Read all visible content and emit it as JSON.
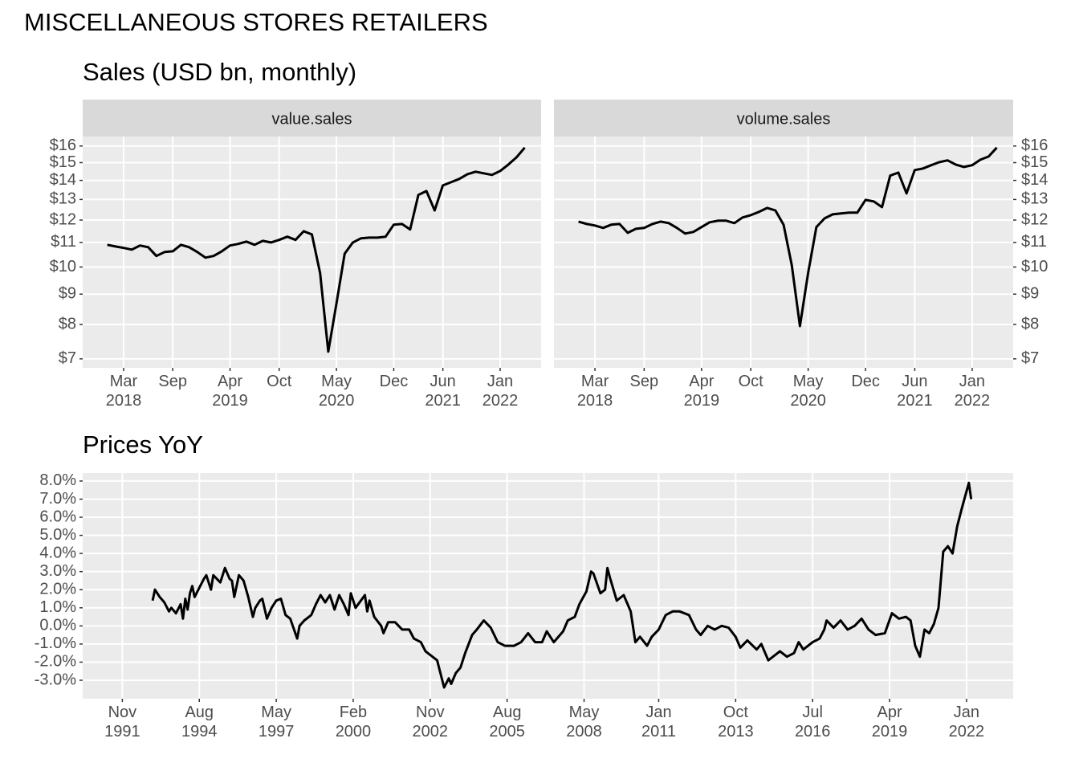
{
  "title": "MISCELLANEOUS STORES RETAILERS",
  "chart_data": [
    {
      "type": "line",
      "title": "Sales (USD bn, monthly)",
      "facet": "value.sales",
      "color": "#000000",
      "log_y": true,
      "y_axis_position": "left",
      "grid": true,
      "x": [
        "2018-01",
        "2018-02",
        "2018-03",
        "2018-04",
        "2018-05",
        "2018-06",
        "2018-07",
        "2018-08",
        "2018-09",
        "2018-10",
        "2018-11",
        "2018-12",
        "2019-01",
        "2019-02",
        "2019-03",
        "2019-04",
        "2019-05",
        "2019-06",
        "2019-07",
        "2019-08",
        "2019-09",
        "2019-10",
        "2019-11",
        "2019-12",
        "2020-01",
        "2020-02",
        "2020-03",
        "2020-04",
        "2020-05",
        "2020-06",
        "2020-07",
        "2020-08",
        "2020-09",
        "2020-10",
        "2020-11",
        "2020-12",
        "2021-01",
        "2021-02",
        "2021-03",
        "2021-04",
        "2021-05",
        "2021-06",
        "2021-07",
        "2021-08",
        "2021-09",
        "2021-10",
        "2021-11",
        "2021-12",
        "2022-01",
        "2022-02",
        "2022-03",
        "2022-04"
      ],
      "values": [
        10.9,
        10.83,
        10.77,
        10.7,
        10.87,
        10.8,
        10.44,
        10.6,
        10.63,
        10.9,
        10.8,
        10.6,
        10.37,
        10.44,
        10.63,
        10.87,
        10.94,
        11.04,
        10.9,
        11.07,
        11.0,
        11.11,
        11.25,
        11.11,
        11.49,
        11.35,
        9.77,
        7.2,
        8.68,
        10.53,
        11.0,
        11.18,
        11.21,
        11.21,
        11.25,
        11.79,
        11.82,
        11.57,
        13.23,
        13.43,
        12.46,
        13.73,
        13.9,
        14.08,
        14.34,
        14.48,
        14.39,
        14.3,
        14.52,
        14.89,
        15.31,
        15.9
      ],
      "xlim": [
        "2017-10",
        "2022-06"
      ],
      "xticks": [
        {
          "value": "2018-03",
          "label": "Mar\n2018"
        },
        {
          "value": "2018-09",
          "label": "Sep"
        },
        {
          "value": "2019-04",
          "label": "Apr\n2019"
        },
        {
          "value": "2019-10",
          "label": "Oct"
        },
        {
          "value": "2020-05",
          "label": "May\n2020"
        },
        {
          "value": "2020-12",
          "label": "Dec"
        },
        {
          "value": "2021-06",
          "label": "Jun\n2021"
        },
        {
          "value": "2022-01",
          "label": "Jan\n2022"
        }
      ],
      "ylim": [
        6.76,
        16.6
      ],
      "yticks": [
        {
          "value": 7,
          "label": "$7"
        },
        {
          "value": 8,
          "label": "$8"
        },
        {
          "value": 9,
          "label": "$9"
        },
        {
          "value": 10,
          "label": "$10"
        },
        {
          "value": 11,
          "label": "$11"
        },
        {
          "value": 12,
          "label": "$12"
        },
        {
          "value": 13,
          "label": "$13"
        },
        {
          "value": 14,
          "label": "$14"
        },
        {
          "value": 15,
          "label": "$15"
        },
        {
          "value": 16,
          "label": "$16"
        }
      ]
    },
    {
      "type": "line",
      "facet": "volume.sales",
      "color": "#000000",
      "log_y": true,
      "y_axis_position": "right",
      "grid": true,
      "x": [
        "2018-01",
        "2018-02",
        "2018-03",
        "2018-04",
        "2018-05",
        "2018-06",
        "2018-07",
        "2018-08",
        "2018-09",
        "2018-10",
        "2018-11",
        "2018-12",
        "2019-01",
        "2019-02",
        "2019-03",
        "2019-04",
        "2019-05",
        "2019-06",
        "2019-07",
        "2019-08",
        "2019-09",
        "2019-10",
        "2019-11",
        "2019-12",
        "2020-01",
        "2020-02",
        "2020-03",
        "2020-04",
        "2020-05",
        "2020-06",
        "2020-07",
        "2020-08",
        "2020-09",
        "2020-10",
        "2020-11",
        "2020-12",
        "2021-01",
        "2021-02",
        "2021-03",
        "2021-04",
        "2021-05",
        "2021-06",
        "2021-07",
        "2021-08",
        "2021-09",
        "2021-10",
        "2021-11",
        "2021-12",
        "2022-01",
        "2022-02",
        "2022-03",
        "2022-04"
      ],
      "values": [
        11.93,
        11.82,
        11.75,
        11.64,
        11.79,
        11.82,
        11.42,
        11.6,
        11.64,
        11.82,
        11.93,
        11.86,
        11.64,
        11.39,
        11.46,
        11.68,
        11.9,
        11.97,
        11.97,
        11.86,
        12.12,
        12.23,
        12.39,
        12.58,
        12.46,
        11.79,
        10.08,
        7.95,
        9.77,
        11.68,
        12.08,
        12.27,
        12.31,
        12.35,
        12.35,
        12.98,
        12.9,
        12.62,
        14.26,
        14.43,
        13.31,
        14.57,
        14.66,
        14.85,
        15.03,
        15.13,
        14.89,
        14.75,
        14.85,
        15.17,
        15.36,
        15.9
      ],
      "xlim": [
        "2017-10",
        "2022-06"
      ],
      "xticks": [
        {
          "value": "2018-03",
          "label": "Mar\n2018"
        },
        {
          "value": "2018-09",
          "label": "Sep"
        },
        {
          "value": "2019-04",
          "label": "Apr\n2019"
        },
        {
          "value": "2019-10",
          "label": "Oct"
        },
        {
          "value": "2020-05",
          "label": "May\n2020"
        },
        {
          "value": "2020-12",
          "label": "Dec"
        },
        {
          "value": "2021-06",
          "label": "Jun\n2021"
        },
        {
          "value": "2022-01",
          "label": "Jan\n2022"
        }
      ],
      "ylim": [
        6.76,
        16.6
      ],
      "yticks": [
        {
          "value": 7,
          "label": "$7"
        },
        {
          "value": 8,
          "label": "$8"
        },
        {
          "value": 9,
          "label": "$9"
        },
        {
          "value": 10,
          "label": "$10"
        },
        {
          "value": 11,
          "label": "$11"
        },
        {
          "value": 12,
          "label": "$12"
        },
        {
          "value": 13,
          "label": "$13"
        },
        {
          "value": 14,
          "label": "$14"
        },
        {
          "value": 15,
          "label": "$15"
        },
        {
          "value": 16,
          "label": "$16"
        }
      ]
    },
    {
      "type": "line",
      "title": "Prices YoY",
      "color": "#000000",
      "log_y": false,
      "y_axis_position": "left",
      "grid": true,
      "x": [
        "1992-12",
        "1993-01",
        "1993-03",
        "1993-05",
        "1993-07",
        "1993-08",
        "1993-10",
        "1993-12",
        "1994-01",
        "1994-02",
        "1994-03",
        "1994-04",
        "1994-05",
        "1994-06",
        "1994-10",
        "1994-11",
        "1995-01",
        "1995-02",
        "1995-05",
        "1995-07",
        "1995-09",
        "1995-10",
        "1995-11",
        "1996-01",
        "1996-03",
        "1996-05",
        "1996-07",
        "1996-08",
        "1996-10",
        "1996-11",
        "1997-01",
        "1997-03",
        "1997-05",
        "1997-07",
        "1997-09",
        "1997-11",
        "1998-02",
        "1998-03",
        "1998-05",
        "1998-08",
        "1998-10",
        "1998-12",
        "1999-02",
        "1999-04",
        "1999-06",
        "1999-08",
        "1999-10",
        "1999-12",
        "2000-01",
        "2000-03",
        "2000-07",
        "2000-08",
        "2000-09",
        "2000-11",
        "2001-02",
        "2001-03",
        "2001-05",
        "2001-08",
        "2001-11",
        "2002-02",
        "2002-04",
        "2002-07",
        "2002-09",
        "2002-11",
        "2003-02",
        "2003-05",
        "2003-07",
        "2003-08",
        "2003-10",
        "2003-12",
        "2004-02",
        "2004-05",
        "2004-07",
        "2004-10",
        "2005-01",
        "2005-04",
        "2005-07",
        "2005-11",
        "2006-02",
        "2006-05",
        "2006-08",
        "2006-11",
        "2007-01",
        "2007-04",
        "2007-08",
        "2007-10",
        "2008-01",
        "2008-03",
        "2008-06",
        "2008-08",
        "2008-09",
        "2008-12",
        "2009-02",
        "2009-03",
        "2009-04",
        "2009-07",
        "2009-10",
        "2010-01",
        "2010-03",
        "2010-05",
        "2010-08",
        "2010-10",
        "2011-01",
        "2011-04",
        "2011-07",
        "2011-10",
        "2012-02",
        "2012-05",
        "2012-07",
        "2012-10",
        "2013-01",
        "2013-04",
        "2013-07",
        "2013-10",
        "2013-12",
        "2014-03",
        "2014-07",
        "2014-09",
        "2014-12",
        "2015-03",
        "2015-05",
        "2015-08",
        "2015-11",
        "2016-01",
        "2016-03",
        "2016-07",
        "2016-10",
        "2016-12",
        "2017-01",
        "2017-04",
        "2017-07",
        "2017-10",
        "2018-01",
        "2018-04",
        "2018-07",
        "2018-10",
        "2019-02",
        "2019-05",
        "2019-08",
        "2019-11",
        "2020-01",
        "2020-03",
        "2020-05",
        "2020-07",
        "2020-09",
        "2020-11",
        "2021-01",
        "2021-03",
        "2021-05",
        "2021-07",
        "2021-09",
        "2021-11",
        "2022-02",
        "2022-03"
      ],
      "values": [
        1.4,
        2.0,
        1.6,
        1.3,
        0.8,
        1.0,
        0.7,
        1.2,
        0.4,
        1.5,
        0.9,
        1.8,
        2.2,
        1.6,
        2.6,
        2.8,
        2.0,
        2.8,
        2.4,
        3.2,
        2.6,
        2.5,
        1.6,
        2.8,
        2.5,
        1.6,
        0.5,
        1.0,
        1.4,
        1.5,
        0.4,
        1.0,
        1.4,
        1.5,
        0.6,
        0.4,
        -0.7,
        0.0,
        0.3,
        0.6,
        1.2,
        1.7,
        1.3,
        1.7,
        0.9,
        1.7,
        1.2,
        0.6,
        1.8,
        1.0,
        1.7,
        0.8,
        1.4,
        0.5,
        0.0,
        -0.4,
        0.2,
        0.2,
        -0.2,
        -0.2,
        -0.7,
        -0.9,
        -1.4,
        -1.6,
        -1.9,
        -3.4,
        -2.9,
        -3.2,
        -2.6,
        -2.3,
        -1.5,
        -0.5,
        -0.2,
        0.3,
        -0.1,
        -0.9,
        -1.1,
        -1.1,
        -0.9,
        -0.4,
        -0.9,
        -0.9,
        -0.3,
        -0.9,
        -0.3,
        0.3,
        0.5,
        1.2,
        1.9,
        3.0,
        2.9,
        1.8,
        2.0,
        3.2,
        2.7,
        1.4,
        1.7,
        0.8,
        -0.9,
        -0.6,
        -1.1,
        -0.6,
        -0.2,
        0.6,
        0.8,
        0.8,
        0.6,
        -0.2,
        -0.5,
        0.0,
        -0.2,
        0.0,
        -0.1,
        -0.6,
        -1.2,
        -0.8,
        -1.3,
        -1.0,
        -1.9,
        -1.6,
        -1.4,
        -1.7,
        -1.5,
        -0.9,
        -1.3,
        -0.9,
        -0.7,
        -0.2,
        0.3,
        -0.1,
        0.3,
        -0.2,
        0.0,
        0.4,
        -0.2,
        -0.5,
        -0.4,
        0.7,
        0.4,
        0.5,
        0.3,
        -1.1,
        -1.7,
        -0.2,
        -0.4,
        0.1,
        1.0,
        4.1,
        4.4,
        4.0,
        5.5,
        6.5,
        7.9,
        7.0
      ],
      "xlim": [
        "1990-06",
        "2023-09"
      ],
      "xticks": [
        {
          "value": "1991-11",
          "label": "Nov\n1991"
        },
        {
          "value": "1994-08",
          "label": "Aug\n1994"
        },
        {
          "value": "1997-05",
          "label": "May\n1997"
        },
        {
          "value": "2000-02",
          "label": "Feb\n2000"
        },
        {
          "value": "2002-11",
          "label": "Nov\n2002"
        },
        {
          "value": "2005-08",
          "label": "Aug\n2005"
        },
        {
          "value": "2008-05",
          "label": "May\n2008"
        },
        {
          "value": "2011-01",
          "label": "Jan\n2011"
        },
        {
          "value": "2013-10",
          "label": "Oct\n2013"
        },
        {
          "value": "2016-07",
          "label": "Jul\n2016"
        },
        {
          "value": "2019-04",
          "label": "Apr\n2019"
        },
        {
          "value": "2022-01",
          "label": "Jan\n2022"
        }
      ],
      "ylim": [
        -4.02,
        8.44
      ],
      "yticks": [
        {
          "value": -3,
          "label": "-3.0%"
        },
        {
          "value": -2,
          "label": "-2.0%"
        },
        {
          "value": -1,
          "label": "-1.0%"
        },
        {
          "value": 0,
          "label": "0.0%"
        },
        {
          "value": 1,
          "label": "1.0%"
        },
        {
          "value": 2,
          "label": "2.0%"
        },
        {
          "value": 3,
          "label": "3.0%"
        },
        {
          "value": 4,
          "label": "4.0%"
        },
        {
          "value": 5,
          "label": "5.0%"
        },
        {
          "value": 6,
          "label": "6.0%"
        },
        {
          "value": 7,
          "label": "7.0%"
        },
        {
          "value": 8,
          "label": "8.0%"
        }
      ]
    }
  ]
}
